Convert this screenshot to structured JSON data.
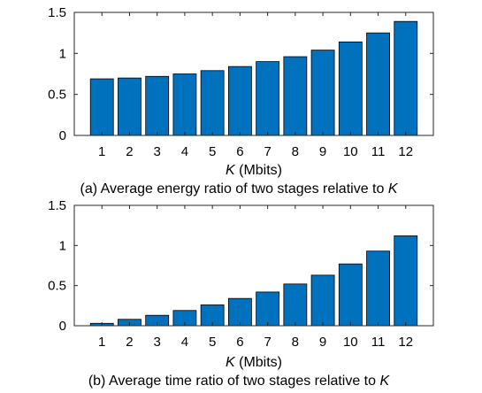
{
  "chart_data": [
    {
      "type": "bar",
      "categories": [
        "1",
        "2",
        "3",
        "4",
        "5",
        "6",
        "7",
        "8",
        "9",
        "10",
        "11",
        "12"
      ],
      "values": [
        0.69,
        0.7,
        0.72,
        0.75,
        0.79,
        0.84,
        0.9,
        0.96,
        1.04,
        1.14,
        1.25,
        1.39
      ],
      "xlabel_var": "K",
      "xlabel_unit": "(Mbits)",
      "ylim": [
        0,
        1.5
      ],
      "yticks": [
        "0",
        "0.5",
        "1",
        "1.5"
      ],
      "caption_prefix": "(a)  Average energy ratio of two stages relative to",
      "caption_var": "K",
      "bar_color": "#0072BD",
      "grid": false,
      "legend": "none"
    },
    {
      "type": "bar",
      "categories": [
        "1",
        "2",
        "3",
        "4",
        "5",
        "6",
        "7",
        "8",
        "9",
        "10",
        "11",
        "12"
      ],
      "values": [
        0.03,
        0.08,
        0.13,
        0.19,
        0.26,
        0.34,
        0.42,
        0.52,
        0.63,
        0.77,
        0.93,
        1.12
      ],
      "xlabel_var": "K",
      "xlabel_unit": "(Mbits)",
      "ylim": [
        0,
        1.5
      ],
      "yticks": [
        "0",
        "0.5",
        "1",
        "1.5"
      ],
      "caption_prefix": "(b) Average time ratio of two stages relative to",
      "caption_var": "K",
      "bar_color": "#0072BD",
      "grid": false,
      "legend": "none"
    }
  ]
}
